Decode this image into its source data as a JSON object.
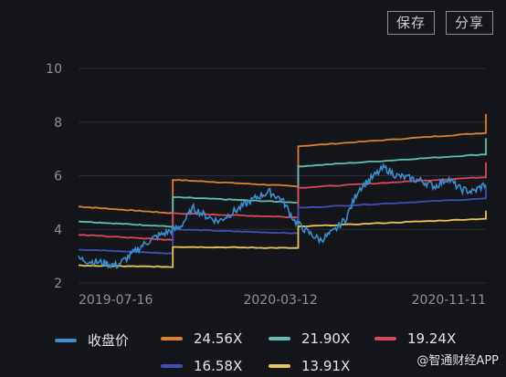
{
  "toolbar": {
    "save_label": "保存",
    "share_label": "分享"
  },
  "watermark": "@智通财经APP",
  "chart_data": {
    "type": "line",
    "x_ticks": [
      "2019-07-16",
      "2020-03-12",
      "2020-11-11"
    ],
    "ylim": [
      2,
      10
    ],
    "y_ticks": [
      2,
      4,
      6,
      8,
      10
    ],
    "grid": true,
    "legend_position": "bottom",
    "breakpoints": [
      "2019-07-16",
      "2019-11-05",
      "2020-03-12",
      "2020-04-02",
      "2020-11-11"
    ],
    "series": [
      {
        "name": "收盘价",
        "color": "#3a8fd0",
        "values": [
          2.9,
          2.8,
          2.75,
          2.65,
          3.0,
          3.4,
          3.7,
          3.9,
          4.1,
          4.8,
          4.5,
          4.3,
          4.6,
          4.9,
          5.2,
          5.4,
          5.1,
          4.3,
          3.9,
          3.6,
          3.9,
          4.4,
          5.5,
          5.9,
          6.3,
          6.0,
          5.9,
          5.8,
          5.6,
          5.9,
          5.5,
          5.4,
          5.7
        ]
      },
      {
        "name": "24.56X",
        "color": "#e07d2e",
        "levels": [
          [
            4.85,
            4.6
          ],
          [
            5.85,
            5.6
          ],
          [
            7.1,
            7.6
          ]
        ],
        "end_value": 8.3
      },
      {
        "name": "21.90X",
        "color": "#5fbfb0",
        "levels": [
          [
            4.3,
            4.1
          ],
          [
            5.2,
            5.0
          ],
          [
            6.35,
            6.8
          ]
        ],
        "end_value": 7.4
      },
      {
        "name": "19.24X",
        "color": "#d9495a",
        "levels": [
          [
            3.8,
            3.6
          ],
          [
            4.6,
            4.45
          ],
          [
            5.55,
            5.95
          ]
        ],
        "end_value": 6.5
      },
      {
        "name": "16.58X",
        "color": "#3f4fb5",
        "levels": [
          [
            3.25,
            3.1
          ],
          [
            4.0,
            3.85
          ],
          [
            4.8,
            5.15
          ]
        ],
        "end_value": 5.6
      },
      {
        "name": "13.91X",
        "color": "#e8c45a",
        "levels": [
          [
            2.65,
            2.6
          ],
          [
            3.35,
            3.3
          ],
          [
            4.1,
            4.4
          ]
        ],
        "end_value": 4.7
      }
    ]
  }
}
